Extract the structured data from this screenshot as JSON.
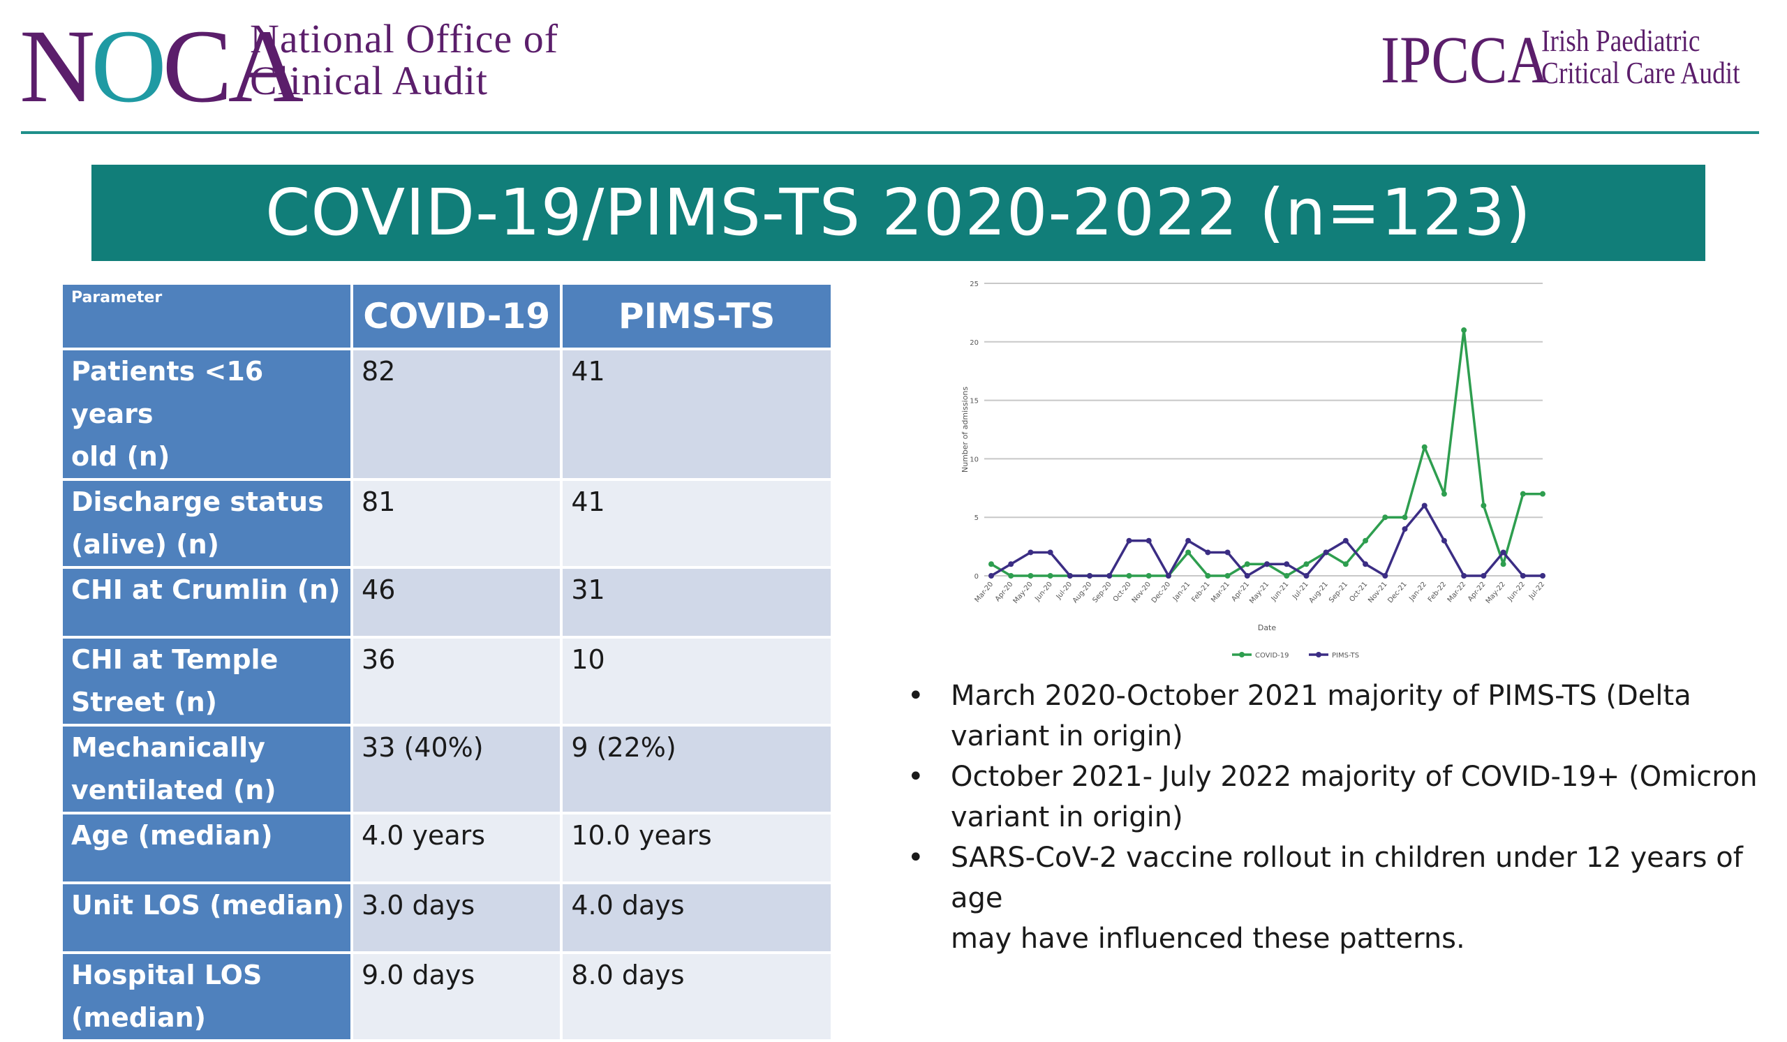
{
  "header": {
    "noca_logo": {
      "n": "N",
      "o": "O",
      "ca": "CA",
      "line1": "National Office of",
      "line2": "Clinical Audit"
    },
    "ipcca_logo": {
      "mark": "IPCCA",
      "line1": "Irish Paediatric",
      "line2": "Critical Care Audit"
    }
  },
  "title": "COVID-19/PIMS-TS 2020-2022 (n=123)",
  "table": {
    "headers": [
      "Parameter",
      "COVID-19",
      "PIMS-TS"
    ],
    "rows": [
      {
        "label1": "Patients <16 years",
        "label2": "old (n)",
        "covid": "82",
        "pims": "41"
      },
      {
        "label1": "Discharge status",
        "label2": "(alive) (n)",
        "covid": "81",
        "pims": "41"
      },
      {
        "label1": "CHI at Crumlin (n)",
        "label2": "",
        "covid": "46",
        "pims": "31"
      },
      {
        "label1": "CHI at Temple",
        "label2": "Street (n)",
        "covid": "36",
        "pims": "10"
      },
      {
        "label1": "Mechanically",
        "label2": "ventilated (n)",
        "covid": "33 (40%)",
        "pims": "9 (22%)"
      },
      {
        "label1": "Age (median)",
        "label2": "",
        "covid": "4.0 years",
        "pims": "10.0 years"
      },
      {
        "label1": "Unit LOS (median)",
        "label2": "",
        "covid": "3.0 days",
        "pims": "4.0 days"
      },
      {
        "label1": "Hospital LOS",
        "label2": "(median)",
        "covid": "9.0 days",
        "pims": "8.0 days"
      }
    ]
  },
  "chart_data": {
    "type": "line",
    "xlabel": "Date",
    "ylabel": "Number of admissions",
    "ylim": [
      0,
      25
    ],
    "yticks": [
      0,
      5,
      10,
      15,
      20,
      25
    ],
    "grid": true,
    "legend": "bottom",
    "categories": [
      "Mar-20",
      "Apr-20",
      "May-20",
      "Jun-20",
      "Jul-20",
      "Aug-20",
      "Sep-20",
      "Oct-20",
      "Nov-20",
      "Dec-20",
      "Jan-21",
      "Feb-21",
      "Mar-21",
      "Apr-21",
      "May-21",
      "Jun-21",
      "Jul-21",
      "Aug-21",
      "Sep-21",
      "Oct-21",
      "Nov-21",
      "Dec-21",
      "Jan-22",
      "Feb-22",
      "Mar-22",
      "Apr-22",
      "May-22",
      "Jun-22",
      "Jul-22"
    ],
    "series": [
      {
        "name": "COVID-19",
        "color": "#2e9e4f",
        "values": [
          1,
          0,
          0,
          0,
          0,
          0,
          0,
          0,
          0,
          0,
          2,
          0,
          0,
          1,
          1,
          0,
          1,
          2,
          1,
          3,
          5,
          5,
          11,
          7,
          21,
          6,
          1,
          7,
          7
        ]
      },
      {
        "name": "PIMS-TS",
        "color": "#3b2d84",
        "values": [
          0,
          1,
          2,
          2,
          0,
          0,
          0,
          3,
          3,
          0,
          3,
          2,
          2,
          0,
          1,
          1,
          0,
          2,
          3,
          1,
          0,
          4,
          6,
          3,
          0,
          0,
          2,
          0,
          0
        ]
      }
    ]
  },
  "bullets": [
    {
      "line1": "March 2020-October 2021 majority of PIMS-TS (Delta",
      "line2": "variant in origin)"
    },
    {
      "line1": "October 2021- July 2022 majority of COVID-19+ (Omicron",
      "line2": "variant in origin)"
    },
    {
      "line1": "SARS-CoV-2 vaccine rollout in children under 12 years of age",
      "line2": "may have influenced these patterns."
    }
  ],
  "bullet_glyph": "•"
}
